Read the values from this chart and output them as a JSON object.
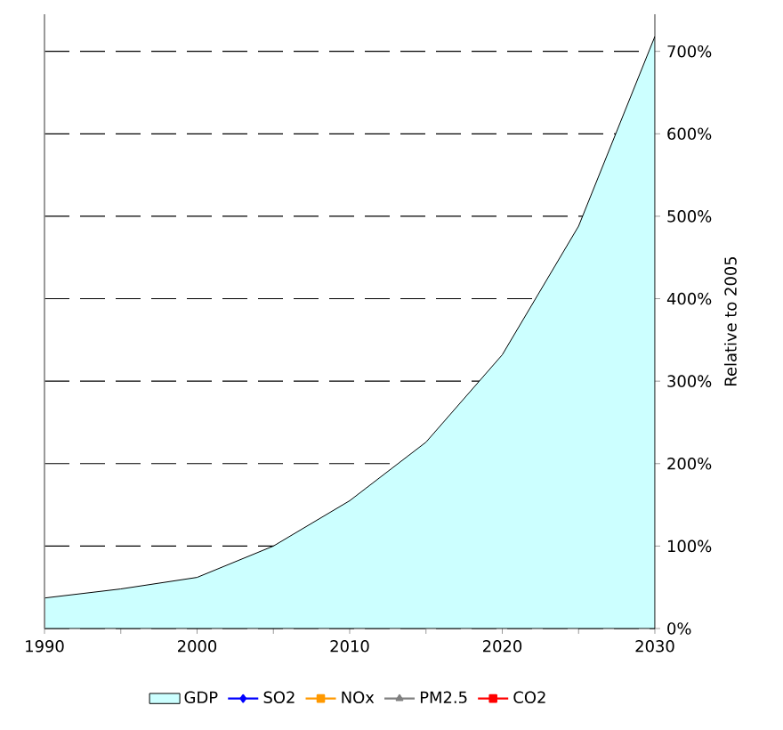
{
  "chart_data": {
    "type": "area",
    "ylabel": "Relative to 2005",
    "x": [
      1990,
      1995,
      2000,
      2005,
      2010,
      2015,
      2020,
      2025,
      2030
    ],
    "series": [
      {
        "name": "GDP",
        "color": "#ccffff",
        "values": [
          37,
          48,
          62,
          100,
          155,
          226,
          332,
          488,
          718
        ]
      },
      {
        "name": "SO2",
        "type": "line",
        "color": "#0000ff",
        "marker": "diamond",
        "values": [
          null,
          null,
          null,
          null,
          null,
          null,
          null,
          null,
          null
        ]
      },
      {
        "name": "NOx",
        "type": "line",
        "color": "#ff9900",
        "marker": "square",
        "values": [
          null,
          null,
          null,
          null,
          null,
          null,
          null,
          null,
          null
        ]
      },
      {
        "name": "PM2.5",
        "type": "line",
        "color": "#808080",
        "marker": "triangle",
        "values": [
          null,
          null,
          null,
          null,
          null,
          null,
          null,
          null,
          null
        ]
      },
      {
        "name": "CO2",
        "type": "line",
        "color": "#ff0000",
        "marker": "square",
        "values": [
          null,
          null,
          null,
          null,
          null,
          null,
          null,
          null,
          null
        ]
      }
    ],
    "xlim": [
      1990,
      2030
    ],
    "xticks": [
      1990,
      {
        "value": 1995,
        "label": null
      },
      2000,
      {
        "value": 2005,
        "label": null
      },
      2010,
      {
        "value": 2015,
        "label": null
      },
      2020,
      {
        "value": 2025,
        "label": null
      },
      2030
    ],
    "ylim": [
      0,
      745
    ],
    "yticks": [
      {
        "value": 0,
        "label": "0%"
      },
      {
        "value": 100,
        "label": "100%"
      },
      {
        "value": 200,
        "label": "200%"
      },
      {
        "value": 300,
        "label": "300%"
      },
      {
        "value": 400,
        "label": "400%"
      },
      {
        "value": 500,
        "label": "500%"
      },
      {
        "value": 600,
        "label": "600%"
      },
      {
        "value": 700,
        "label": "700%"
      }
    ],
    "grid": "y",
    "legend": "bottom"
  }
}
